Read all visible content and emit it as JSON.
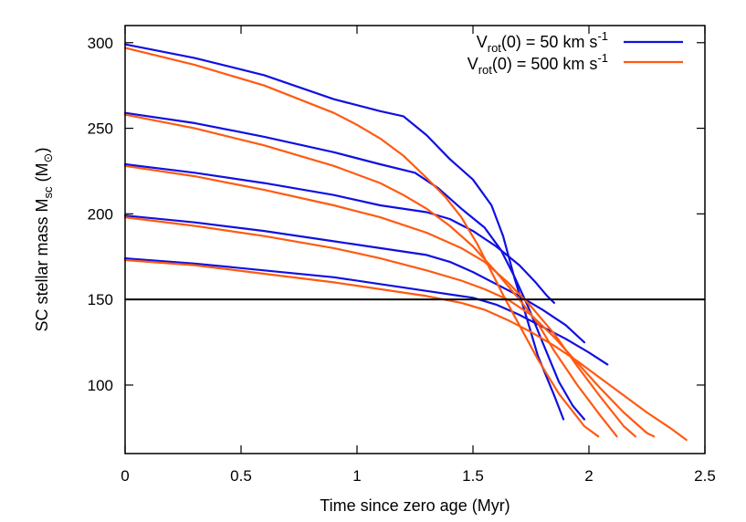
{
  "chart_data": {
    "type": "line",
    "xlabel": "Time since zero age (Myr)",
    "ylabel": {
      "main": "SC stellar mass M",
      "sub": "sc",
      "unit_open": " (M",
      "unit_sym": "⊙",
      "unit_close": ")"
    },
    "xlim": [
      0,
      2.5
    ],
    "ylim": [
      60,
      310
    ],
    "xticks": [
      0,
      0.5,
      1,
      1.5,
      2,
      2.5
    ],
    "xtick_labels": [
      "0",
      "0.5",
      "1",
      "1.5",
      "2",
      "2.5"
    ],
    "yticks": [
      100,
      150,
      200,
      250,
      300
    ],
    "ytick_labels": [
      "100",
      "150",
      "200",
      "250",
      "300"
    ],
    "grid": false,
    "legend_position": "top-right",
    "legend": [
      {
        "pre": "V",
        "sub": "rot",
        "mid": "(0) = 50 km s",
        "sup": "-1",
        "color": "#1010e0"
      },
      {
        "pre": "V",
        "sub": "rot",
        "mid": "(0) = 500 km s",
        "sup": "-1",
        "color": "#ff5a10"
      }
    ],
    "reference_line": {
      "y": 150,
      "color": "#000000"
    },
    "series": [
      {
        "group": 0,
        "color": "#1010e0",
        "points": [
          [
            0,
            299
          ],
          [
            0.3,
            291
          ],
          [
            0.6,
            281
          ],
          [
            0.9,
            267
          ],
          [
            1.1,
            260
          ],
          [
            1.2,
            257
          ],
          [
            1.3,
            246
          ],
          [
            1.4,
            232
          ],
          [
            1.5,
            220
          ],
          [
            1.58,
            205
          ],
          [
            1.63,
            187
          ],
          [
            1.68,
            162
          ],
          [
            1.73,
            140
          ],
          [
            1.78,
            117
          ],
          [
            1.85,
            94
          ],
          [
            1.89,
            80
          ]
        ]
      },
      {
        "group": 0,
        "color": "#1010e0",
        "points": [
          [
            0,
            259
          ],
          [
            0.3,
            253
          ],
          [
            0.6,
            245
          ],
          [
            0.9,
            236
          ],
          [
            1.1,
            229
          ],
          [
            1.25,
            224
          ],
          [
            1.35,
            215
          ],
          [
            1.45,
            203
          ],
          [
            1.55,
            192
          ],
          [
            1.62,
            179
          ],
          [
            1.68,
            163
          ],
          [
            1.74,
            145
          ],
          [
            1.8,
            125
          ],
          [
            1.87,
            102
          ],
          [
            1.93,
            88
          ],
          [
            1.98,
            80
          ]
        ]
      },
      {
        "group": 0,
        "color": "#1010e0",
        "points": [
          [
            0,
            229
          ],
          [
            0.3,
            224
          ],
          [
            0.6,
            218
          ],
          [
            0.9,
            211
          ],
          [
            1.1,
            205
          ],
          [
            1.3,
            201
          ],
          [
            1.4,
            197
          ],
          [
            1.5,
            190
          ],
          [
            1.6,
            181
          ],
          [
            1.7,
            170
          ],
          [
            1.77,
            160
          ],
          [
            1.82,
            152
          ],
          [
            1.85,
            148
          ]
        ]
      },
      {
        "group": 0,
        "color": "#1010e0",
        "points": [
          [
            0,
            199
          ],
          [
            0.3,
            195
          ],
          [
            0.6,
            190
          ],
          [
            0.9,
            184
          ],
          [
            1.1,
            180
          ],
          [
            1.3,
            176
          ],
          [
            1.4,
            172
          ],
          [
            1.5,
            166
          ],
          [
            1.6,
            159
          ],
          [
            1.7,
            152
          ],
          [
            1.8,
            144
          ],
          [
            1.9,
            135
          ],
          [
            1.98,
            125
          ]
        ]
      },
      {
        "group": 0,
        "color": "#1010e0",
        "points": [
          [
            0,
            174
          ],
          [
            0.3,
            171
          ],
          [
            0.6,
            167
          ],
          [
            0.9,
            163
          ],
          [
            1.1,
            159
          ],
          [
            1.3,
            155
          ],
          [
            1.5,
            151
          ],
          [
            1.6,
            147
          ],
          [
            1.7,
            141
          ],
          [
            1.8,
            134
          ],
          [
            1.9,
            127
          ],
          [
            2.0,
            119
          ],
          [
            2.08,
            112
          ]
        ]
      },
      {
        "group": 1,
        "color": "#ff5a10",
        "points": [
          [
            0,
            297
          ],
          [
            0.3,
            287
          ],
          [
            0.6,
            275
          ],
          [
            0.9,
            259
          ],
          [
            1.0,
            252
          ],
          [
            1.1,
            244
          ],
          [
            1.2,
            234
          ],
          [
            1.3,
            221
          ],
          [
            1.38,
            210
          ],
          [
            1.45,
            198
          ],
          [
            1.52,
            182
          ],
          [
            1.58,
            166
          ],
          [
            1.64,
            150
          ],
          [
            1.7,
            135
          ],
          [
            1.78,
            115
          ],
          [
            1.87,
            95
          ],
          [
            1.98,
            76
          ],
          [
            2.04,
            70
          ]
        ]
      },
      {
        "group": 1,
        "color": "#ff5a10",
        "points": [
          [
            0,
            258
          ],
          [
            0.3,
            250
          ],
          [
            0.6,
            240
          ],
          [
            0.9,
            228
          ],
          [
            1.1,
            218
          ],
          [
            1.2,
            211
          ],
          [
            1.3,
            203
          ],
          [
            1.4,
            193
          ],
          [
            1.5,
            181
          ],
          [
            1.6,
            166
          ],
          [
            1.7,
            150
          ],
          [
            1.78,
            136
          ],
          [
            1.85,
            120
          ],
          [
            1.95,
            100
          ],
          [
            2.05,
            82
          ],
          [
            2.12,
            70
          ]
        ]
      },
      {
        "group": 1,
        "color": "#ff5a10",
        "points": [
          [
            0,
            228
          ],
          [
            0.3,
            222
          ],
          [
            0.6,
            214
          ],
          [
            0.9,
            205
          ],
          [
            1.1,
            198
          ],
          [
            1.3,
            189
          ],
          [
            1.45,
            180
          ],
          [
            1.55,
            172
          ],
          [
            1.65,
            160
          ],
          [
            1.75,
            146
          ],
          [
            1.85,
            130
          ],
          [
            1.95,
            111
          ],
          [
            2.05,
            93
          ],
          [
            2.15,
            76
          ],
          [
            2.2,
            70
          ]
        ]
      },
      {
        "group": 1,
        "color": "#ff5a10",
        "points": [
          [
            0,
            198
          ],
          [
            0.3,
            193
          ],
          [
            0.6,
            187
          ],
          [
            0.9,
            180
          ],
          [
            1.1,
            174
          ],
          [
            1.3,
            167
          ],
          [
            1.45,
            161
          ],
          [
            1.55,
            156
          ],
          [
            1.65,
            150
          ],
          [
            1.75,
            141
          ],
          [
            1.85,
            128
          ],
          [
            1.95,
            113
          ],
          [
            2.05,
            98
          ],
          [
            2.15,
            84
          ],
          [
            2.25,
            72
          ],
          [
            2.28,
            70
          ]
        ]
      },
      {
        "group": 1,
        "color": "#ff5a10",
        "points": [
          [
            0,
            173
          ],
          [
            0.3,
            170
          ],
          [
            0.6,
            165
          ],
          [
            0.9,
            160
          ],
          [
            1.1,
            156
          ],
          [
            1.3,
            152
          ],
          [
            1.45,
            148
          ],
          [
            1.55,
            144
          ],
          [
            1.65,
            138
          ],
          [
            1.75,
            131
          ],
          [
            1.85,
            123
          ],
          [
            1.95,
            114
          ],
          [
            2.05,
            104
          ],
          [
            2.15,
            94
          ],
          [
            2.25,
            84
          ],
          [
            2.35,
            75
          ],
          [
            2.42,
            68
          ]
        ]
      }
    ]
  }
}
